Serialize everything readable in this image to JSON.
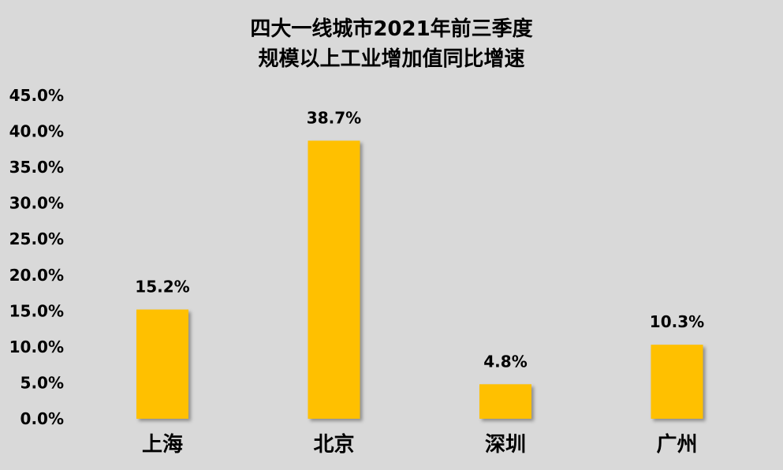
{
  "chart_data": {
    "type": "bar",
    "title_lines": [
      "四大一线城市2021年前三季度",
      "规模以上工业增加值同比增速"
    ],
    "categories": [
      "上海",
      "北京",
      "深圳",
      "广州"
    ],
    "values": [
      15.2,
      38.7,
      4.8,
      10.3
    ],
    "value_labels": [
      "15.2%",
      "38.7%",
      "4.8%",
      "10.3%"
    ],
    "y_ticks": [
      "0.0%",
      "5.0%",
      "10.0%",
      "15.0%",
      "20.0%",
      "25.0%",
      "30.0%",
      "35.0%",
      "40.0%",
      "45.0%"
    ],
    "ylim": [
      0,
      45
    ],
    "grid": false,
    "legend": "none",
    "bar_color": "#ffc000",
    "background_color": "#d9d9d9"
  }
}
